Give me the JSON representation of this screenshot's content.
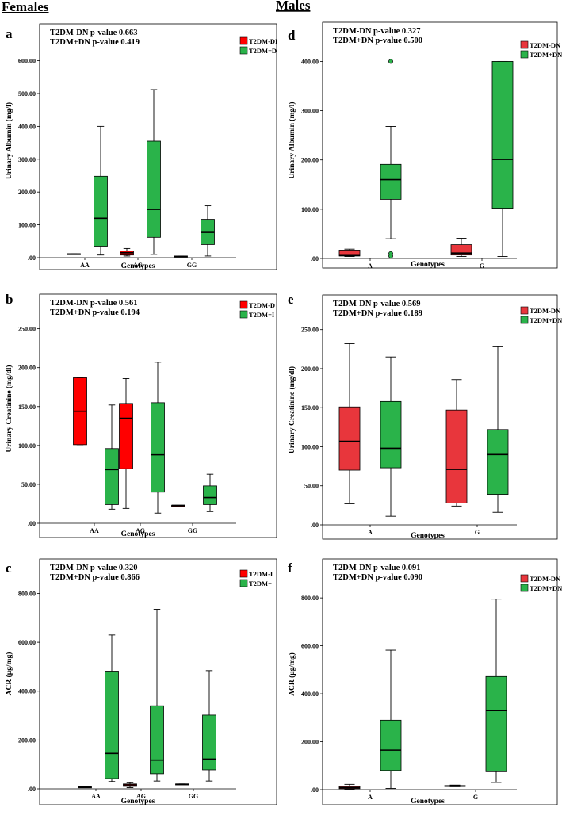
{
  "titles": {
    "left": "Females",
    "right": "Males"
  },
  "colors": {
    "red_female": "#ff0000",
    "red_male": "#e8363c",
    "green": "#2ab34a",
    "frame": "#000000"
  },
  "chart_data": [
    {
      "type": "box",
      "panel": "a",
      "pvalues": [
        "T2DM-DN p-value 0.663",
        "T2DM+DN p-value 0.419"
      ],
      "legend": [
        "T2DM-DI",
        "T2DM+D"
      ],
      "ylabel": "Urinary Albumin (mg/l)",
      "xlabel": "Genotypes",
      "categories": [
        "AA",
        "AG",
        "GG"
      ],
      "ylim": [
        0,
        640
      ],
      "yticks": [
        0,
        100,
        200,
        300,
        400,
        500,
        600
      ],
      "ytick_labels": [
        ".00",
        "100.00",
        "200.00",
        "300.00",
        "400.00",
        "500.00",
        "600.00"
      ],
      "series": [
        {
          "name": "T2DM-DN",
          "boxes": [
            [
              10,
              10,
              11,
              12,
              12
            ],
            [
              5,
              8,
              15,
              20,
              28
            ],
            [
              4,
              4,
              4,
              5,
              5
            ]
          ]
        },
        {
          "name": "T2DM+DN",
          "boxes": [
            [
              8,
              35,
              120,
              248,
              400
            ],
            [
              10,
              62,
              147,
              355,
              512
            ],
            [
              5,
              40,
              77,
              117,
              158
            ]
          ]
        }
      ],
      "outliers": []
    },
    {
      "type": "box",
      "panel": "b",
      "pvalues": [
        "T2DM-DN p-value 0.561",
        "T2DM+DN p-value 0.194"
      ],
      "legend": [
        "T2DM-D",
        "T2DM+I"
      ],
      "ylabel": "Urinary Creatinine (mg/dl)",
      "xlabel": "Genotypes",
      "categories": [
        "AA",
        "AG",
        "GG"
      ],
      "ylim": [
        0,
        270
      ],
      "yticks": [
        0,
        50,
        100,
        150,
        200,
        250
      ],
      "ytick_labels": [
        ".00",
        "50.00",
        "100.00",
        "150.00",
        "200.00",
        "250.00"
      ],
      "series": [
        {
          "name": "T2DM-DN",
          "boxes": [
            [
              101,
              101,
              144,
              187,
              187
            ],
            [
              19,
              70,
              135,
              154,
              186
            ],
            [
              23,
              23,
              23,
              23,
              23
            ]
          ]
        },
        {
          "name": "T2DM+DN",
          "boxes": [
            [
              18,
              24,
              69,
              96,
              152
            ],
            [
              13,
              40,
              88,
              155,
              207
            ],
            [
              15,
              24,
              33,
              48,
              63
            ]
          ]
        }
      ],
      "outliers": []
    },
    {
      "type": "box",
      "panel": "c",
      "pvalues": [
        "T2DM-DN p-value 0.320",
        "T2DM+DN p-value 0.866"
      ],
      "legend": [
        "T2DM-I",
        "T2DM+"
      ],
      "ylabel": "ACR (μg/mg)",
      "xlabel": "Genotypes",
      "categories": [
        "AA",
        "AG",
        "GG"
      ],
      "ylim": [
        0,
        860
      ],
      "yticks": [
        0,
        200,
        400,
        600,
        800
      ],
      "ytick_labels": [
        ".00",
        "200.00",
        "400.00",
        "600.00",
        "800.00"
      ],
      "series": [
        {
          "name": "T2DM-DN",
          "boxes": [
            [
              6,
              6,
              7,
              8,
              8
            ],
            [
              5,
              10,
              16,
              20,
              25
            ],
            [
              18,
              18,
              19,
              20,
              20
            ]
          ]
        },
        {
          "name": "T2DM+DN",
          "boxes": [
            [
              30,
              42,
              145,
              482,
              630
            ],
            [
              32,
              62,
              118,
              340,
              735
            ],
            [
              32,
              78,
              122,
              302,
              484
            ]
          ]
        }
      ],
      "outliers": []
    },
    {
      "type": "box",
      "panel": "d",
      "pvalues": [
        "T2DM-DN p-value 0.327",
        "T2DM+DN p-value 0.500"
      ],
      "legend": [
        "T2DM-DN",
        "T2DM+DN"
      ],
      "ylabel": "Urinary Albumin (mg/l)",
      "xlabel": "Genotypes",
      "categories": [
        "A",
        "G"
      ],
      "ylim": [
        0,
        420
      ],
      "yticks": [
        0,
        100,
        200,
        300,
        400
      ],
      "ytick_labels": [
        ".00",
        "100.00",
        "200.00",
        "300.00",
        "400.00"
      ],
      "series": [
        {
          "name": "T2DM-DN",
          "boxes": [
            [
              4,
              5,
              6,
              17,
              19
            ],
            [
              4,
              7,
              11,
              28,
              41
            ]
          ]
        },
        {
          "name": "T2DM+DN",
          "boxes": [
            [
              40,
              120,
              160,
              191,
              268
            ],
            [
              4,
              102,
              201,
              400,
              400
            ]
          ]
        }
      ],
      "outliers": [
        {
          "series": 1,
          "category": 0,
          "value": 400
        },
        {
          "series": 1,
          "category": 0,
          "value": 10
        },
        {
          "series": 1,
          "category": 0,
          "value": 5
        }
      ]
    },
    {
      "type": "box",
      "panel": "e",
      "pvalues": [
        "T2DM-DN p-value 0.569",
        "T2DM+DN p-value 0.189"
      ],
      "legend": [
        "T2DM-DN",
        "T2DM+DN"
      ],
      "ylabel": "Urinary Creatinine (mg/dl)",
      "xlabel": "Genotypes",
      "categories": [
        "A",
        "G"
      ],
      "ylim": [
        0,
        270
      ],
      "yticks": [
        0,
        50,
        100,
        150,
        200,
        250
      ],
      "ytick_labels": [
        ".00",
        "50.00",
        "100.00",
        "150.00",
        "200.00",
        "250.00"
      ],
      "series": [
        {
          "name": "T2DM-DN",
          "boxes": [
            [
              27,
              70,
              107,
              151,
              232
            ],
            [
              24,
              28,
              71,
              147,
              186
            ]
          ]
        },
        {
          "name": "T2DM+DN",
          "boxes": [
            [
              11,
              73,
              98,
              158,
              215
            ],
            [
              16,
              39,
              90,
              122,
              228
            ]
          ]
        }
      ],
      "outliers": []
    },
    {
      "type": "box",
      "panel": "f",
      "pvalues": [
        "T2DM-DN p-value 0.091",
        "T2DM+DN p-value 0.090"
      ],
      "legend": [
        "T2DM-DN",
        "T2DM+DN"
      ],
      "ylabel": "ACR (μg/mg)",
      "xlabel": "Genotypes",
      "categories": [
        "A",
        "G"
      ],
      "ylim": [
        0,
        860
      ],
      "yticks": [
        0,
        200,
        400,
        600,
        800
      ],
      "ytick_labels": [
        ".00",
        "200.00",
        "400.00",
        "600.00",
        "800.00"
      ],
      "series": [
        {
          "name": "T2DM-DN",
          "boxes": [
            [
              2,
              4,
              8,
              13,
              22
            ],
            [
              12,
              13,
              15,
              17,
              19
            ]
          ]
        },
        {
          "name": "T2DM+DN",
          "boxes": [
            [
              5,
              80,
              165,
              290,
              582
            ],
            [
              30,
              75,
              330,
              472,
              795
            ]
          ]
        }
      ],
      "outliers": []
    }
  ]
}
